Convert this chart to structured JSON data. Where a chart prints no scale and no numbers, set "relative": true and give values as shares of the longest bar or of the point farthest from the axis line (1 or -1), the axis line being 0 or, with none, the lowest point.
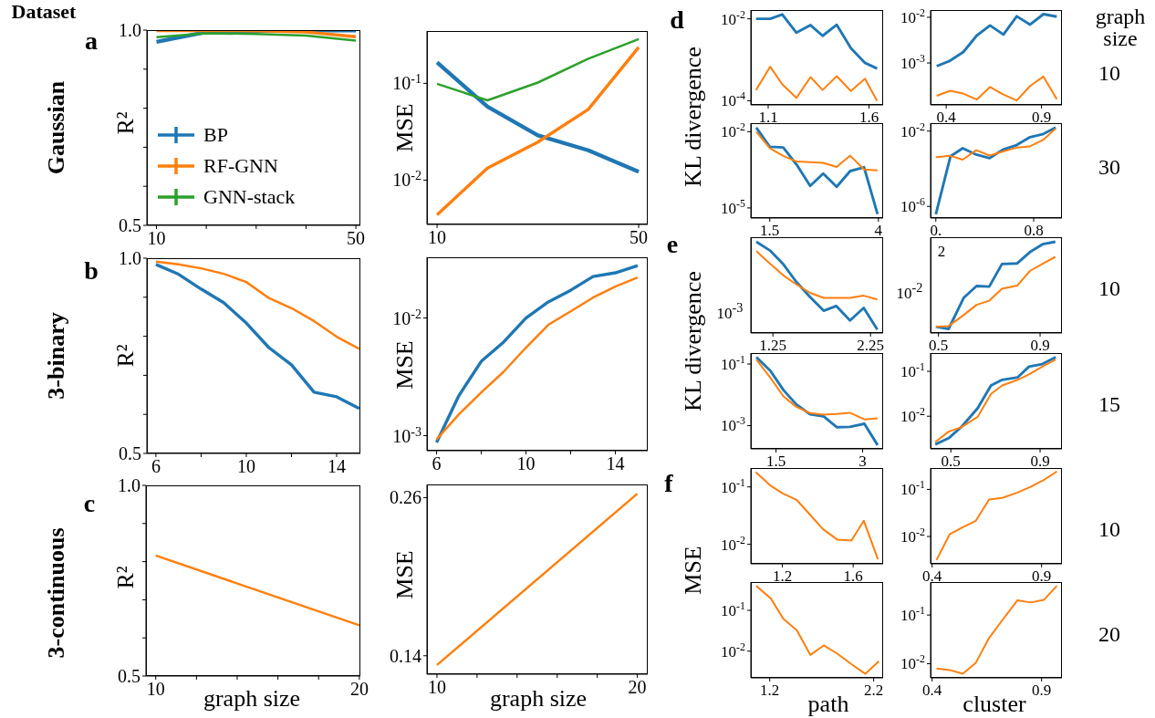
{
  "chart_data": [
    {
      "type": "line",
      "annotations": [
        "Dataset",
        "Gaussian",
        "a"
      ],
      "ylabel": "R²",
      "legend": "bottom left",
      "x": [
        10,
        20,
        30,
        40,
        50
      ],
      "xlim": [
        8.08,
        50.9
      ],
      "xticks": [
        10,
        {
          "value": 20,
          "label": null
        },
        {
          "value": 30,
          "label": null
        },
        {
          "value": 40,
          "label": null
        },
        50
      ],
      "ylim": [
        0.5,
        1
      ],
      "yticks": [
        0.5,
        {
          "value": 0.6,
          "label": null
        },
        {
          "value": 0.7,
          "label": null
        },
        {
          "value": 0.8,
          "label": null
        },
        {
          "value": 0.9,
          "label": null
        },
        {
          "value": 1,
          "label": "1.0"
        }
      ],
      "series": [
        {
          "name": "BP",
          "color": "#1f77b4",
          "values": [
            0.97,
            0.995,
            0.998,
            0.999,
            0.999
          ]
        },
        {
          "name": "RF-GNN",
          "color": "#ff7f0e",
          "values": [
            0.999,
            0.999,
            0.998,
            0.995,
            0.983
          ]
        },
        {
          "name": "GNN-stack",
          "color": "#2ca02c",
          "values": [
            0.982,
            0.992,
            0.99,
            0.986,
            0.973
          ]
        }
      ]
    },
    {
      "type": "line",
      "ylabel": "MSE",
      "log": "y",
      "x": [
        10,
        20,
        30,
        40,
        50
      ],
      "xlim": [
        8,
        51.8
      ],
      "xticks": [
        10,
        50
      ],
      "ylim": [
        0.00348,
        0.348
      ],
      "yticks": [
        {
          "value": 0.01,
          "label": "10$^{-2}$"
        },
        {
          "value": 0.1,
          "label": "10$^{-1}$"
        }
      ],
      "series": [
        {
          "color": "#1f77b4",
          "values": [
            0.165,
            0.0575,
            0.029,
            0.0203,
            0.0122
          ]
        },
        {
          "color": "#ff7f0e",
          "values": [
            0.00438,
            0.0133,
            0.0247,
            0.0538,
            0.236
          ]
        },
        {
          "color": "#2ca02c",
          "values": [
            0.0989,
            0.0668,
            0.102,
            0.18,
            0.287
          ]
        }
      ]
    },
    {
      "type": "line",
      "annotations": [
        "3-binary",
        "b"
      ],
      "ylabel": "R²",
      "x": [
        6,
        7,
        8,
        9,
        10,
        11,
        12,
        13,
        14,
        15
      ],
      "xlim": [
        5.6,
        15.05
      ],
      "xticks": [
        6,
        {
          "value": 8,
          "label": null
        },
        10,
        {
          "value": 12,
          "label": null
        },
        14
      ],
      "ylim": [
        0.5,
        1
      ],
      "yticks": [
        0.5,
        {
          "value": 0.6,
          "label": null
        },
        {
          "value": 0.7,
          "label": null
        },
        {
          "value": 0.8,
          "label": null
        },
        {
          "value": 0.9,
          "label": null
        },
        {
          "value": 1,
          "label": "1.0"
        }
      ],
      "series": [
        {
          "color": "#1f77b4",
          "values": [
            0.984,
            0.959,
            0.921,
            0.886,
            0.834,
            0.771,
            0.727,
            0.657,
            0.645,
            0.615
          ]
        },
        {
          "color": "#ff7f0e",
          "values": [
            0.991,
            0.984,
            0.974,
            0.96,
            0.939,
            0.898,
            0.872,
            0.839,
            0.799,
            0.768
          ]
        }
      ]
    },
    {
      "type": "line",
      "ylabel": "MSE",
      "log": "y",
      "x": [
        6,
        7,
        8,
        9,
        10,
        11,
        12,
        13,
        14,
        15
      ],
      "xlim": [
        5.57,
        15.45
      ],
      "xticks": [
        6,
        {
          "value": 8,
          "label": null
        },
        10,
        {
          "value": 12,
          "label": null
        },
        14
      ],
      "ylim": [
        0.000745,
        0.0328
      ],
      "yticks": [
        {
          "value": 0.001,
          "label": "10$^{-3}$"
        },
        {
          "value": 0.01,
          "label": "10$^{-2}$"
        }
      ],
      "series": [
        {
          "color": "#1f77b4",
          "values": [
            0.000875,
            0.00219,
            0.00428,
            0.00624,
            0.01,
            0.0137,
            0.0172,
            0.0225,
            0.0242,
            0.0279
          ]
        },
        {
          "color": "#ff7f0e",
          "values": [
            0.00093,
            0.00152,
            0.00233,
            0.00349,
            0.0056,
            0.00875,
            0.0114,
            0.0149,
            0.0185,
            0.0221
          ]
        }
      ]
    },
    {
      "type": "line",
      "annotations": [
        "3-continuous",
        "c"
      ],
      "ylabel": "R²",
      "xlabel": "graph size",
      "x": [
        10,
        20
      ],
      "xlim": [
        9.52,
        20.05
      ],
      "xticks": [
        10,
        {
          "value": 12,
          "label": null
        },
        {
          "value": 14,
          "label": null
        },
        {
          "value": 16,
          "label": null
        },
        {
          "value": 18,
          "label": null
        },
        20
      ],
      "ylim": [
        0.5,
        1
      ],
      "yticks": [
        0.5,
        {
          "value": 0.6,
          "label": null
        },
        {
          "value": 0.7,
          "label": null
        },
        {
          "value": 0.8,
          "label": null
        },
        {
          "value": 0.9,
          "label": null
        },
        {
          "value": 1,
          "label": "1.0"
        }
      ],
      "series": [
        {
          "color": "#ff7f0e",
          "values": [
            0.816,
            0.633
          ]
        }
      ]
    },
    {
      "type": "line",
      "ylabel": "MSE",
      "xlabel": "graph size",
      "x": [
        10,
        20
      ],
      "xlim": [
        9.5,
        20.52
      ],
      "xticks": [
        10,
        {
          "value": 12,
          "label": null
        },
        {
          "value": 14,
          "label": null
        },
        {
          "value": 16,
          "label": null
        },
        {
          "value": 18,
          "label": null
        },
        20
      ],
      "ylim": [
        0.126,
        0.27
      ],
      "yticks": [
        0.14,
        0.26
      ],
      "series": [
        {
          "color": "#ff7f0e",
          "values": [
            0.133,
            0.263
          ]
        }
      ]
    },
    {
      "type": "line",
      "annotations": [
        "d"
      ],
      "ylabel": "KL divergence",
      "log": "y",
      "x": [
        1.04,
        1.11,
        1.17,
        1.24,
        1.31,
        1.37,
        1.44,
        1.51,
        1.58,
        1.64
      ],
      "xlim": [
        1.014,
        1.67
      ],
      "xticks": [
        1.1,
        1.6
      ],
      "ylim": [
        7.9e-05,
        0.0164
      ],
      "yticks": [
        {
          "value": 0.0001,
          "label": "10$^{-4}$"
        },
        {
          "value": 0.01,
          "label": "10$^{-2}$"
        }
      ],
      "series": [
        {
          "color": "#1f77b4",
          "values": [
            0.01,
            0.01,
            0.0128,
            0.00459,
            0.00702,
            0.00385,
            0.00714,
            0.00193,
            0.00084,
            0.00061
          ]
        },
        {
          "color": "#ff7f0e",
          "values": [
            0.000183,
            0.000678,
            0.000251,
            0.000117,
            0.000378,
            0.000183,
            0.000398,
            0.000173,
            0.000345,
            0.0001
          ]
        }
      ]
    },
    {
      "type": "line",
      "annotations": [
        "graph size",
        "10"
      ],
      "log": "y",
      "x": [
        0.35,
        0.42,
        0.49,
        0.56,
        0.63,
        0.7,
        0.77,
        0.84,
        0.91,
        0.98
      ],
      "xlim": [
        0.318,
        1.007
      ],
      "xticks": [
        0.4,
        0.9
      ],
      "ylim": [
        0.000121,
        0.0144
      ],
      "yticks": [
        {
          "value": 0.001,
          "label": "10$^{-3}$"
        },
        {
          "value": 0.01,
          "label": "10$^{-2}$"
        }
      ],
      "series": [
        {
          "color": "#1f77b4",
          "values": [
            0.000853,
            0.00112,
            0.00174,
            0.00398,
            0.00662,
            0.00418,
            0.0105,
            0.00693,
            0.0117,
            0.0103
          ]
        },
        {
          "color": "#ff7f0e",
          "values": [
            0.000192,
            0.000247,
            0.000214,
            0.000158,
            0.000299,
            0.000204,
            0.000151,
            0.000314,
            0.000505,
            0.000161
          ]
        }
      ]
    },
    {
      "type": "line",
      "log": "y",
      "x": [
        1.19,
        1.5,
        1.81,
        2.12,
        2.43,
        2.73,
        3.04,
        3.35,
        3.67,
        3.98
      ],
      "xlim": [
        1.065,
        4.109
      ],
      "xticks": [
        1.5,
        4
      ],
      "ylim": [
        4e-06,
        0.0216
      ],
      "yticks": [
        {
          "value": 1e-05,
          "label": "10$^{-5}$"
        },
        {
          "value": 0.01,
          "label": "10$^{-2}$"
        }
      ],
      "series": [
        {
          "color": "#1f77b4",
          "values": [
            0.0145,
            0.00254,
            0.0024,
            0.0005,
            7.4e-05,
            0.000225,
            6.8e-05,
            0.000282,
            0.000398,
            5.7e-06
          ]
        },
        {
          "color": "#ff7f0e",
          "values": [
            0.01,
            0.00227,
            0.00111,
            0.000665,
            0.000628,
            0.000593,
            0.000409,
            0.00114,
            0.000326,
            0.000299
          ]
        }
      ]
    },
    {
      "type": "line",
      "annotations": [
        "30"
      ],
      "log": "y",
      "x": [
        0,
        0.12,
        0.22,
        0.33,
        0.44,
        0.55,
        0.66,
        0.77,
        0.88,
        0.98
      ],
      "xlim": [
        -0.043,
        1.031
      ],
      "xticks": [
        {
          "value": 0,
          "label": "0."
        },
        0.8
      ],
      "ylim": [
        2.4e-07,
        0.0264
      ],
      "yticks": [
        {
          "value": 1e-06,
          "label": "10$^{-6}$"
        },
        {
          "value": 0.01,
          "label": "10$^{-2}$"
        }
      ],
      "series": [
        {
          "color": "#1f77b4",
          "values": [
            3.8e-07,
            0.000464,
            0.00123,
            0.000564,
            0.000367,
            0.00105,
            0.00181,
            0.00478,
            0.00705,
            0.0154
          ]
        },
        {
          "color": "#ff7f0e",
          "values": [
            0.000413,
            0.000483,
            0.000303,
            0.00097,
            0.000501,
            0.000832,
            0.00132,
            0.00155,
            0.0035,
            0.0137
          ]
        }
      ]
    },
    {
      "type": "line",
      "annotations": [
        "e",
        "10$^{-3}$"
      ],
      "ylabel": "KL divergence",
      "relative": true,
      "x": [
        1.08,
        1.22,
        1.36,
        1.49,
        1.63,
        1.77,
        1.9,
        2.04,
        2.18,
        2.32
      ],
      "xlim": [
        1.024,
        2.379
      ],
      "xticks": [
        1.25,
        2.25
      ],
      "series": [
        {
          "color": "#1f77b4",
          "values": [
            1,
            0.904,
            0.749,
            0.56,
            0.395,
            0.244,
            0.296,
            0.137,
            0.275,
            0.038
          ]
        },
        {
          "color": "#ff7f0e",
          "values": [
            0.897,
            0.759,
            0.629,
            0.533,
            0.44,
            0.385,
            0.385,
            0.385,
            0.409,
            0.368
          ]
        }
      ]
    },
    {
      "type": "line",
      "annotations": [
        "2",
        "10",
        "10$^{-2}$"
      ],
      "relative": true,
      "x": [
        0.49,
        0.54,
        0.6,
        0.65,
        0.7,
        0.75,
        0.81,
        0.86,
        0.91,
        0.96
      ],
      "xlim": [
        0.469,
        0.986
      ],
      "xticks": [
        0.5,
        0.9
      ],
      "series": [
        {
          "color": "#1f77b4",
          "values": [
            0.069,
            0.045,
            0.388,
            0.515,
            0.509,
            0.756,
            0.763,
            0.887,
            0.973,
            1
          ]
        },
        {
          "color": "#ff7f0e",
          "values": [
            0.069,
            0.076,
            0.199,
            0.309,
            0.354,
            0.485,
            0.519,
            0.68,
            0.759,
            0.835
          ]
        }
      ]
    },
    {
      "type": "line",
      "log": "y",
      "x": [
        1.16,
        1.4,
        1.63,
        1.85,
        2.09,
        2.32,
        2.55,
        2.78,
        3.03,
        3.26
      ],
      "xlim": [
        1.064,
        3.355
      ],
      "xticks": [
        1.5,
        3
      ],
      "ylim": [
        0.000176,
        0.227
      ],
      "yticks": [
        {
          "value": 0.001,
          "label": "10$^{-3}$"
        },
        {
          "value": 0.1,
          "label": "10$^{-1}$"
        }
      ],
      "series": [
        {
          "color": "#1f77b4",
          "values": [
            0.168,
            0.0611,
            0.0142,
            0.00494,
            0.00233,
            0.00202,
            0.00089,
            0.00091,
            0.00115,
            0.000233
          ]
        },
        {
          "color": "#ff7f0e",
          "values": [
            0.139,
            0.0364,
            0.00889,
            0.00409,
            0.00256,
            0.00228,
            0.00239,
            0.00262,
            0.0016,
            0.00172
          ]
        }
      ]
    },
    {
      "type": "line",
      "annotations": [
        "15"
      ],
      "log": "y",
      "x": [
        0.43,
        0.49,
        0.55,
        0.62,
        0.68,
        0.73,
        0.8,
        0.85,
        0.91,
        0.97
      ],
      "xlim": [
        0.409,
        0.998
      ],
      "xticks": [
        0.5,
        0.9
      ],
      "ylim": [
        0.001875,
        0.255
      ],
      "yticks": [
        {
          "value": 0.01,
          "label": "10$^{-2}$"
        },
        {
          "value": 0.1,
          "label": "10$^{-1}$"
        }
      ],
      "series": [
        {
          "color": "#1f77b4",
          "values": [
            0.00235,
            0.00324,
            0.00597,
            0.015,
            0.0484,
            0.0647,
            0.0736,
            0.127,
            0.145,
            0.207
          ]
        },
        {
          "color": "#ff7f0e",
          "values": [
            0.00267,
            0.00454,
            0.00578,
            0.00968,
            0.0314,
            0.0484,
            0.0647,
            0.0851,
            0.127,
            0.182
          ]
        }
      ]
    },
    {
      "type": "line",
      "annotations": [
        "f"
      ],
      "ylabel": "MSE",
      "log": "y",
      "x": [
        1.05,
        1.13,
        1.2,
        1.28,
        1.36,
        1.43,
        1.51,
        1.59,
        1.66,
        1.74
      ],
      "xlim": [
        1.022,
        1.769
      ],
      "xticks": [
        1.2,
        1.6
      ],
      "ylim": [
        0.00458,
        0.213
      ],
      "yticks": [
        {
          "value": 0.01,
          "label": "10$^{-2}$"
        },
        {
          "value": 0.1,
          "label": "10$^{-1}$"
        }
      ],
      "series": [
        {
          "color": "#ff7f0e",
          "values": [
            0.181,
            0.107,
            0.0778,
            0.0597,
            0.0318,
            0.0183,
            0.0121,
            0.0116,
            0.0257,
            0.00547
          ]
        }
      ]
    },
    {
      "type": "line",
      "annotations": [
        "10"
      ],
      "log": "y",
      "x": [
        0.42,
        0.48,
        0.54,
        0.6,
        0.66,
        0.72,
        0.79,
        0.85,
        0.91,
        0.97
      ],
      "xlim": [
        0.393,
        0.993
      ],
      "xticks": [
        0.4,
        0.9
      ],
      "ylim": [
        0.00263,
        0.284
      ],
      "yticks": [
        {
          "value": 0.01,
          "label": "10$^{-2}$"
        },
        {
          "value": 0.1,
          "label": "10$^{-1}$"
        }
      ],
      "series": [
        {
          "color": "#ff7f0e",
          "values": [
            0.00316,
            0.0111,
            0.0158,
            0.0216,
            0.0612,
            0.066,
            0.0858,
            0.113,
            0.158,
            0.24
          ]
        }
      ]
    },
    {
      "type": "line",
      "xlabel": "path",
      "log": "y",
      "x": [
        1.07,
        1.21,
        1.33,
        1.46,
        1.59,
        1.72,
        1.85,
        1.98,
        2.12,
        2.25
      ],
      "xlim": [
        1.018,
        2.291
      ],
      "xticks": [
        1.2,
        2.2
      ],
      "ylim": [
        0.00222,
        0.492
      ],
      "yticks": [
        {
          "value": 0.01,
          "label": "10$^{-2}$"
        },
        {
          "value": 0.1,
          "label": "10$^{-1}$"
        }
      ],
      "series": [
        {
          "color": "#ff7f0e",
          "values": [
            0.398,
            0.196,
            0.062,
            0.0328,
            0.0081,
            0.0138,
            0.00868,
            0.00492,
            0.00279,
            0.00567
          ]
        }
      ]
    },
    {
      "type": "line",
      "annotations": [
        "20"
      ],
      "xlabel": "cluster",
      "log": "y",
      "x": [
        0.42,
        0.48,
        0.54,
        0.6,
        0.66,
        0.72,
        0.79,
        0.85,
        0.91,
        0.97
      ],
      "xlim": [
        0.393,
        0.993
      ],
      "xticks": [
        0.4,
        0.9
      ],
      "ylim": [
        0.00513,
        0.475
      ],
      "yticks": [
        {
          "value": 0.01,
          "label": "10$^{-2}$"
        },
        {
          "value": 0.1,
          "label": "10$^{-1}$"
        }
      ],
      "series": [
        {
          "color": "#ff7f0e",
          "values": [
            0.008,
            0.00743,
            0.00622,
            0.0105,
            0.0338,
            0.0777,
            0.201,
            0.181,
            0.204,
            0.398
          ]
        }
      ]
    }
  ]
}
